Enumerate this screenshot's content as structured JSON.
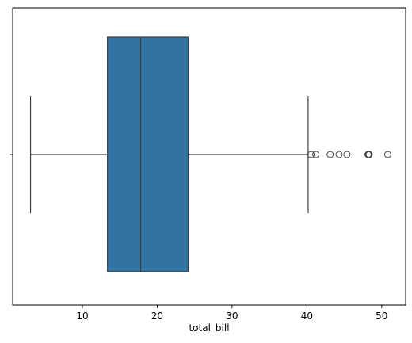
{
  "chart_data": {
    "type": "box",
    "orientation": "horizontal",
    "x_label": "total_bill",
    "whisker_low": 3.07,
    "q1": 13.35,
    "median": 17.795,
    "q3": 24.1275,
    "whisker_high": 40.17,
    "outliers": [
      40.55,
      41.19,
      43.11,
      44.3,
      45.35,
      48.17,
      48.27,
      48.33,
      50.81
    ],
    "color": "#3274a1",
    "xlim": [
      0.683,
      53.197
    ],
    "xticks": [
      10,
      20,
      30,
      40,
      50
    ]
  }
}
